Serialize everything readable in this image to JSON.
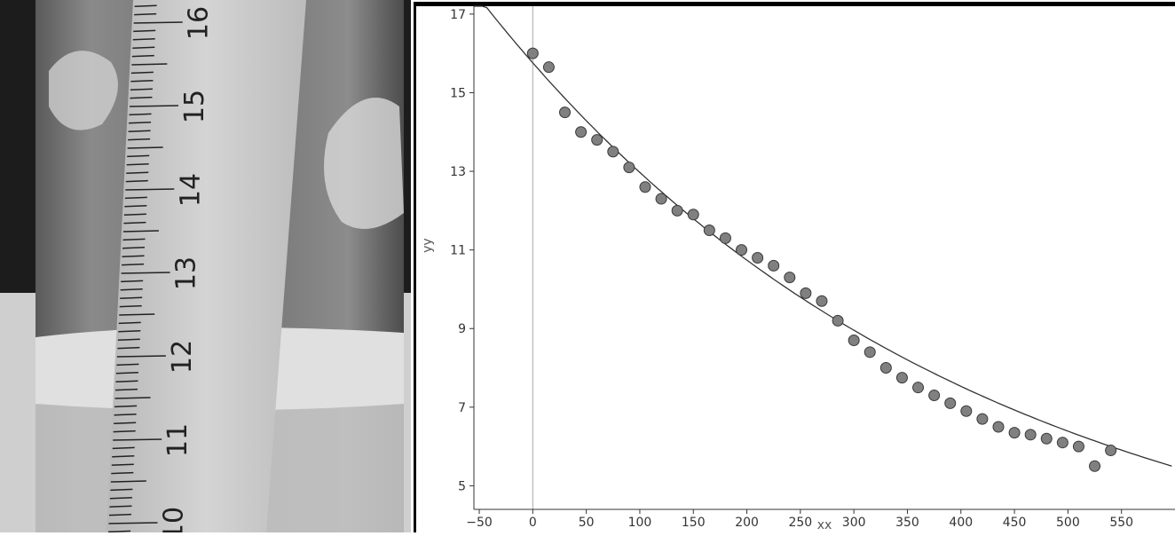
{
  "photo": {
    "ruler_labels": [
      "10",
      "11",
      "12",
      "13",
      "14",
      "15",
      "16"
    ]
  },
  "chart_data": {
    "type": "scatter",
    "xlabel": "xx",
    "ylabel": "yy",
    "xlim": [
      -55,
      600
    ],
    "ylim": [
      4.4,
      17.2
    ],
    "x_ticks": [
      -50,
      0,
      50,
      100,
      150,
      200,
      250,
      300,
      350,
      400,
      450,
      500,
      550
    ],
    "y_ticks": [
      5,
      7,
      9,
      11,
      13,
      15,
      17
    ],
    "x_tick_labels": [
      "−50",
      "0",
      "50",
      "100",
      "150",
      "200",
      "250",
      "300",
      "350",
      "400",
      "450",
      "500",
      "550"
    ],
    "y_tick_labels": [
      "5",
      "7",
      "9",
      "11",
      "13",
      "15",
      "17"
    ],
    "grid": false,
    "points": [
      [
        0,
        16.0
      ],
      [
        15,
        15.65
      ],
      [
        30,
        14.5
      ],
      [
        45,
        14.0
      ],
      [
        60,
        13.8
      ],
      [
        75,
        13.5
      ],
      [
        90,
        13.1
      ],
      [
        105,
        12.6
      ],
      [
        120,
        12.3
      ],
      [
        135,
        12.0
      ],
      [
        150,
        11.9
      ],
      [
        165,
        11.5
      ],
      [
        180,
        11.3
      ],
      [
        195,
        11.0
      ],
      [
        210,
        10.8
      ],
      [
        225,
        10.6
      ],
      [
        240,
        10.3
      ],
      [
        255,
        9.9
      ],
      [
        270,
        9.7
      ],
      [
        285,
        9.2
      ],
      [
        300,
        8.7
      ],
      [
        315,
        8.4
      ],
      [
        330,
        8.0
      ],
      [
        345,
        7.75
      ],
      [
        360,
        7.5
      ],
      [
        375,
        7.3
      ],
      [
        390,
        7.1
      ],
      [
        405,
        6.9
      ],
      [
        420,
        6.7
      ],
      [
        435,
        6.5
      ],
      [
        450,
        6.35
      ],
      [
        465,
        6.3
      ],
      [
        480,
        6.2
      ],
      [
        495,
        6.1
      ],
      [
        510,
        6.0
      ],
      [
        525,
        5.5
      ],
      [
        540,
        5.9
      ]
    ],
    "fit_curve": {
      "type": "exponential",
      "a": 1.835,
      "b": 13.925,
      "k": -0.002235
    },
    "colors": {
      "point_fill": "#808080",
      "point_stroke": "#3a3a3a",
      "curve": "#333333",
      "axis": "#333333",
      "zero_line": "#aaaaaa"
    }
  }
}
